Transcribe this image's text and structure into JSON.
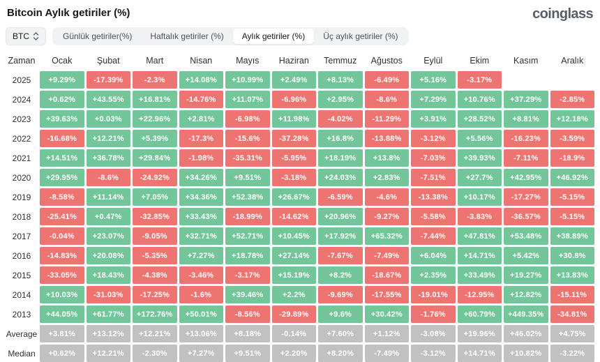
{
  "page": {
    "title": "Bitcoin Aylık getiriler (%)",
    "brand": "coinglass"
  },
  "controls": {
    "symbol": "BTC",
    "tabs": [
      {
        "label": "Günlük getiriler(%)",
        "active": false
      },
      {
        "label": "Haftalık getiriler (%)",
        "active": false
      },
      {
        "label": "Aylık getiriler (%)",
        "active": true
      },
      {
        "label": "Üç aylık getiriler (%)",
        "active": false
      }
    ]
  },
  "chart_data": {
    "type": "heatmap",
    "title": "Bitcoin Aylık getiriler (%)",
    "columns": [
      "Zaman",
      "Ocak",
      "Şubat",
      "Mart",
      "Nisan",
      "Mayıs",
      "Haziran",
      "Temmuz",
      "Ağustos",
      "Eylül",
      "Ekim",
      "Kasım",
      "Aralık"
    ],
    "rows": [
      {
        "label": "2025",
        "tone": "signed",
        "values": [
          "+9.29%",
          "-17.39%",
          "-2.3%",
          "+14.08%",
          "+10.99%",
          "+2.49%",
          "+8.13%",
          "-6.49%",
          "+5.16%",
          "-3.17%",
          "",
          ""
        ]
      },
      {
        "label": "2024",
        "tone": "signed",
        "values": [
          "+0.62%",
          "+43.55%",
          "+16.81%",
          "-14.76%",
          "+11.07%",
          "-6.96%",
          "+2.95%",
          "-8.6%",
          "+7.29%",
          "+10.76%",
          "+37.29%",
          "-2.85%"
        ]
      },
      {
        "label": "2023",
        "tone": "signed",
        "values": [
          "+39.63%",
          "+0.03%",
          "+22.96%",
          "+2.81%",
          "-6.98%",
          "+11.98%",
          "-4.02%",
          "-11.29%",
          "+3.91%",
          "+28.52%",
          "+8.81%",
          "+12.18%"
        ]
      },
      {
        "label": "2022",
        "tone": "signed",
        "values": [
          "-16.68%",
          "+12.21%",
          "+5.39%",
          "-17.3%",
          "-15.6%",
          "-37.28%",
          "+16.8%",
          "-13.88%",
          "-3.12%",
          "+5.56%",
          "-16.23%",
          "-3.59%"
        ]
      },
      {
        "label": "2021",
        "tone": "signed",
        "values": [
          "+14.51%",
          "+36.78%",
          "+29.84%",
          "-1.98%",
          "-35.31%",
          "-5.95%",
          "+18.19%",
          "+13.8%",
          "-7.03%",
          "+39.93%",
          "-7.11%",
          "-18.9%"
        ]
      },
      {
        "label": "2020",
        "tone": "signed",
        "values": [
          "+29.95%",
          "-8.6%",
          "-24.92%",
          "+34.26%",
          "+9.51%",
          "-3.18%",
          "+24.03%",
          "+2.83%",
          "-7.51%",
          "+27.7%",
          "+42.95%",
          "+46.92%"
        ]
      },
      {
        "label": "2019",
        "tone": "signed",
        "values": [
          "-8.58%",
          "+11.14%",
          "+7.05%",
          "+34.36%",
          "+52.38%",
          "+26.67%",
          "-6.59%",
          "-4.6%",
          "-13.38%",
          "+10.17%",
          "-17.27%",
          "-5.15%"
        ]
      },
      {
        "label": "2018",
        "tone": "signed",
        "values": [
          "-25.41%",
          "+0.47%",
          "-32.85%",
          "+33.43%",
          "-18.99%",
          "-14.62%",
          "+20.96%",
          "-9.27%",
          "-5.58%",
          "-3.83%",
          "-36.57%",
          "-5.15%"
        ]
      },
      {
        "label": "2017",
        "tone": "signed",
        "values": [
          "-0.04%",
          "+23.07%",
          "-9.05%",
          "+32.71%",
          "+52.71%",
          "+10.45%",
          "+17.92%",
          "+65.32%",
          "-7.44%",
          "+47.81%",
          "+53.48%",
          "+38.89%"
        ]
      },
      {
        "label": "2016",
        "tone": "signed",
        "values": [
          "-14.83%",
          "+20.08%",
          "-5.35%",
          "+7.27%",
          "+18.78%",
          "+27.14%",
          "-7.67%",
          "-7.49%",
          "+6.04%",
          "+14.71%",
          "+5.42%",
          "+30.8%"
        ]
      },
      {
        "label": "2015",
        "tone": "signed",
        "values": [
          "-33.05%",
          "+18.43%",
          "-4.38%",
          "-3.46%",
          "-3.17%",
          "+15.19%",
          "+8.2%",
          "-18.67%",
          "+2.35%",
          "+33.49%",
          "+19.27%",
          "+13.83%"
        ]
      },
      {
        "label": "2014",
        "tone": "signed",
        "values": [
          "+10.03%",
          "-31.03%",
          "-17.25%",
          "-1.6%",
          "+39.46%",
          "+2.2%",
          "-9.69%",
          "-17.55%",
          "-19.01%",
          "-12.95%",
          "+12.82%",
          "-15.11%"
        ]
      },
      {
        "label": "2013",
        "tone": "signed",
        "values": [
          "+44.05%",
          "+61.77%",
          "+172.76%",
          "+50.01%",
          "-8.56%",
          "-29.89%",
          "+9.6%",
          "+30.42%",
          "-1.76%",
          "+60.79%",
          "+449.35%",
          "-34.81%"
        ]
      },
      {
        "label": "Average",
        "tone": "neutral",
        "values": [
          "+3.81%",
          "+13.12%",
          "+12.21%",
          "+13.06%",
          "+8.18%",
          "-0.14%",
          "+7.60%",
          "+1.12%",
          "-3.08%",
          "+19.96%",
          "+46.02%",
          "+4.75%"
        ]
      },
      {
        "label": "Median",
        "tone": "neutral",
        "values": [
          "+0.62%",
          "+12.21%",
          "-2.30%",
          "+7.27%",
          "+9.51%",
          "+2.20%",
          "+8.20%",
          "-7.49%",
          "-3.12%",
          "+14.71%",
          "+10.82%",
          "-3.22%"
        ]
      }
    ],
    "colors": {
      "positive": "#72c69a",
      "negative": "#ee7471",
      "neutral": "#c1c1c1",
      "value_text": "#ffffff"
    }
  }
}
